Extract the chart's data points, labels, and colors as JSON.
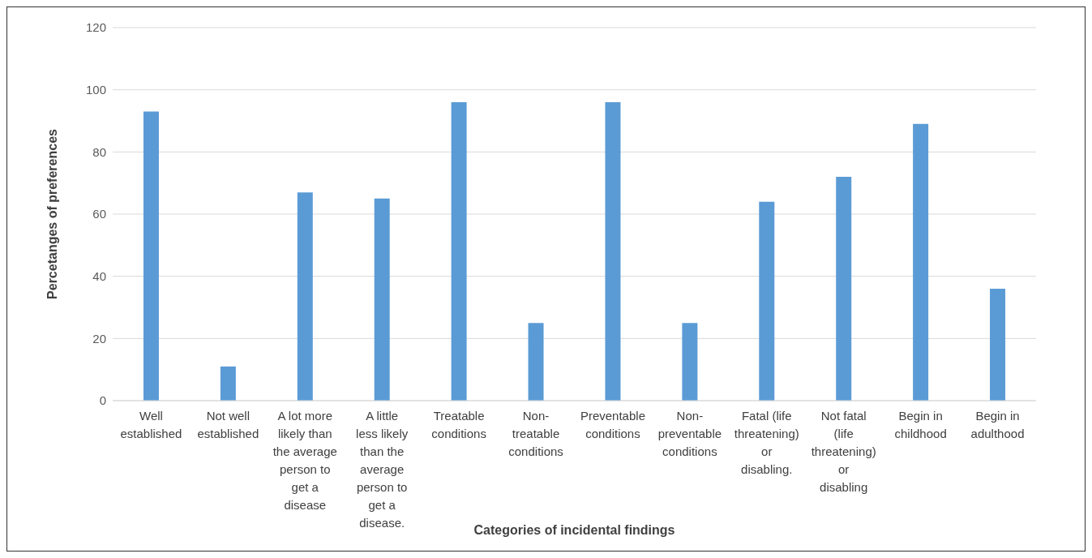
{
  "chart_data": {
    "type": "bar",
    "xlabel": "Categories of incidental findings",
    "ylabel": "Percetanges of preferences",
    "categories": [
      "Well established",
      "Not well established",
      "A lot more likely than the average person to get a disease",
      "A little less likely than the average person to get a disease.",
      "Treatable conditions",
      "Non-treatable conditions",
      "Preventable conditions",
      "Non-preventable conditions",
      "Fatal (life threatening) or disabling.",
      "Not fatal (life threatening) or disabling",
      "Begin in childhood",
      "Begin in adulthood"
    ],
    "values": [
      93,
      11,
      67,
      65,
      96,
      25,
      96,
      25,
      64,
      72,
      89,
      36
    ],
    "color": "#5b9bd5",
    "ylim": [
      0,
      120
    ],
    "yticks": [
      0,
      20,
      40,
      60,
      80,
      100,
      120
    ],
    "grid": "y"
  }
}
